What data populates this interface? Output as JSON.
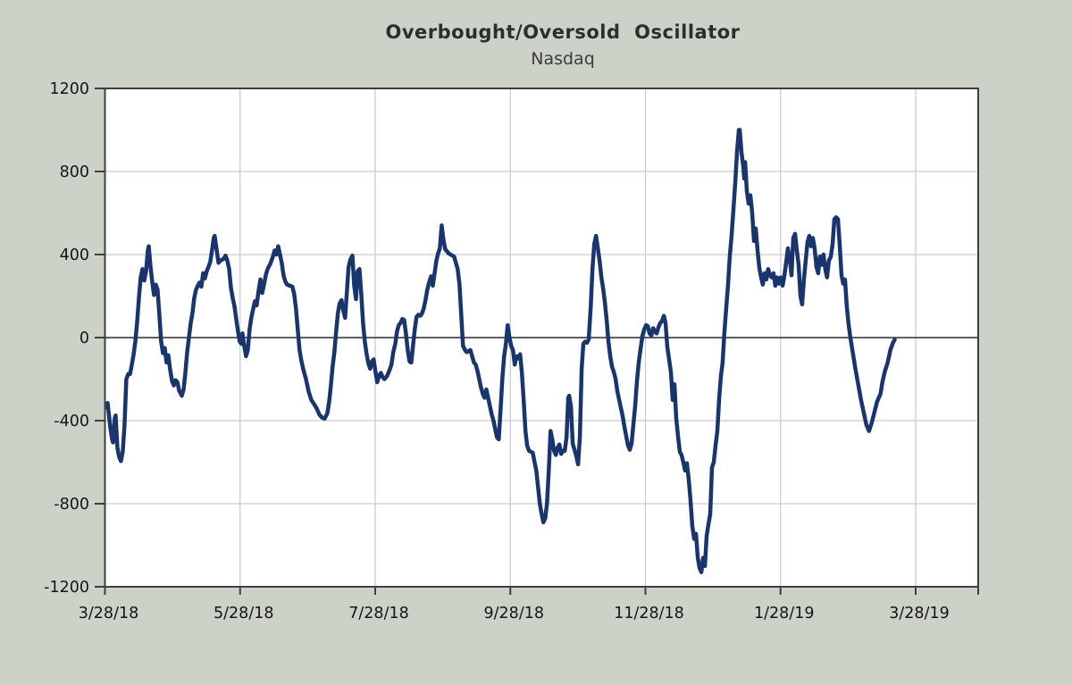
{
  "window": {
    "background_color": "#cdd2c9",
    "plot_background_color": "#ffffff",
    "grid_color": "#c9c9c9",
    "axis_color": "#3f3f3f"
  },
  "chart_data": {
    "type": "line",
    "title": "Overbought/Oversold  Oscillator",
    "subtitle": "Nasdaq",
    "series_name": "Overbought/Oversold Oscillator (Nasdaq)",
    "line_color": "#1a356d",
    "grid": true,
    "legend_position": "none",
    "ylim": [
      -1200,
      1200
    ],
    "y_ticks": [
      1200,
      800,
      400,
      0,
      -400,
      -800,
      -1200
    ],
    "y_tick_labels": [
      "1200",
      "800",
      "400",
      "0",
      "-400",
      "-800",
      "-1200"
    ],
    "x_start_date": "3/28/18",
    "x_end_date": "3/28/19",
    "x_days_span": 365,
    "x_tick_labels": [
      "3/28/18",
      "5/28/18",
      "7/28/18",
      "9/28/18",
      "11/28/18",
      "1/28/19",
      "3/28/19"
    ],
    "points": [
      [
        0.4,
        -335
      ],
      [
        1.2,
        -315
      ],
      [
        2.4,
        -435
      ],
      [
        3.2,
        -490
      ],
      [
        3.6,
        -505
      ],
      [
        4.4,
        -390
      ],
      [
        4.8,
        -375
      ],
      [
        5.6,
        -530
      ],
      [
        6.4,
        -575
      ],
      [
        7.2,
        -595
      ],
      [
        8,
        -550
      ],
      [
        8.8,
        -420
      ],
      [
        9.6,
        -200
      ],
      [
        10.5,
        -175
      ],
      [
        11.3,
        -175
      ],
      [
        12.1,
        -130
      ],
      [
        12.9,
        -80
      ],
      [
        13.7,
        -15
      ],
      [
        14.5,
        80
      ],
      [
        15.3,
        190
      ],
      [
        16.1,
        290
      ],
      [
        16.9,
        330
      ],
      [
        17.7,
        275
      ],
      [
        18.5,
        320
      ],
      [
        19.3,
        420
      ],
      [
        19.7,
        440
      ],
      [
        20.5,
        340
      ],
      [
        21.3,
        265
      ],
      [
        22.1,
        205
      ],
      [
        22.9,
        255
      ],
      [
        23.7,
        230
      ],
      [
        24.5,
        110
      ],
      [
        25.3,
        -20
      ],
      [
        26.1,
        -75
      ],
      [
        26.9,
        -50
      ],
      [
        27.7,
        -120
      ],
      [
        28.5,
        -85
      ],
      [
        29.3,
        -150
      ],
      [
        30.2,
        -210
      ],
      [
        31,
        -230
      ],
      [
        31.8,
        -205
      ],
      [
        32.6,
        -215
      ],
      [
        33.4,
        -255
      ],
      [
        34.6,
        -280
      ],
      [
        35.4,
        -250
      ],
      [
        36.2,
        -170
      ],
      [
        37,
        -70
      ],
      [
        37.8,
        0
      ],
      [
        38.6,
        70
      ],
      [
        39.4,
        120
      ],
      [
        40.2,
        190
      ],
      [
        41,
        230
      ],
      [
        41.8,
        250
      ],
      [
        42.6,
        265
      ],
      [
        43.4,
        245
      ],
      [
        44.2,
        310
      ],
      [
        45,
        285
      ],
      [
        45.8,
        320
      ],
      [
        46.6,
        340
      ],
      [
        47.4,
        365
      ],
      [
        48.2,
        420
      ],
      [
        49,
        480
      ],
      [
        49.4,
        490
      ],
      [
        50.3,
        420
      ],
      [
        51.1,
        360
      ],
      [
        51.9,
        370
      ],
      [
        52.7,
        375
      ],
      [
        53.5,
        380
      ],
      [
        54.3,
        395
      ],
      [
        55.1,
        370
      ],
      [
        55.9,
        330
      ],
      [
        56.7,
        240
      ],
      [
        57.5,
        190
      ],
      [
        58.3,
        150
      ],
      [
        59.1,
        90
      ],
      [
        59.9,
        30
      ],
      [
        60.7,
        -20
      ],
      [
        61.5,
        -30
      ],
      [
        61.9,
        20
      ],
      [
        62.7,
        -40
      ],
      [
        63.5,
        -90
      ],
      [
        64.3,
        -60
      ],
      [
        65.1,
        40
      ],
      [
        65.9,
        95
      ],
      [
        66.7,
        135
      ],
      [
        67.5,
        175
      ],
      [
        68.3,
        155
      ],
      [
        69.1,
        220
      ],
      [
        70,
        280
      ],
      [
        70.8,
        215
      ],
      [
        71.6,
        255
      ],
      [
        72.4,
        300
      ],
      [
        73.2,
        330
      ],
      [
        74.4,
        355
      ],
      [
        75.6,
        390
      ],
      [
        76.4,
        420
      ],
      [
        77.2,
        400
      ],
      [
        78,
        440
      ],
      [
        78.8,
        400
      ],
      [
        79.6,
        360
      ],
      [
        80.4,
        300
      ],
      [
        81.2,
        270
      ],
      [
        82,
        255
      ],
      [
        83.2,
        250
      ],
      [
        84.4,
        245
      ],
      [
        85.2,
        210
      ],
      [
        86,
        140
      ],
      [
        86.8,
        40
      ],
      [
        87.6,
        -60
      ],
      [
        88.4,
        -110
      ],
      [
        89.2,
        -150
      ],
      [
        90.5,
        -200
      ],
      [
        91.7,
        -260
      ],
      [
        92.9,
        -300
      ],
      [
        94.1,
        -320
      ],
      [
        95.3,
        -340
      ],
      [
        96.5,
        -370
      ],
      [
        97.7,
        -385
      ],
      [
        98.9,
        -390
      ],
      [
        100.1,
        -365
      ],
      [
        100.9,
        -310
      ],
      [
        101.7,
        -230
      ],
      [
        102.5,
        -140
      ],
      [
        103.3,
        -70
      ],
      [
        104.1,
        30
      ],
      [
        104.9,
        120
      ],
      [
        105.7,
        165
      ],
      [
        106.5,
        180
      ],
      [
        107.3,
        130
      ],
      [
        108.1,
        95
      ],
      [
        108.9,
        220
      ],
      [
        109.7,
        340
      ],
      [
        110.5,
        375
      ],
      [
        111.4,
        395
      ],
      [
        112.2,
        250
      ],
      [
        113,
        185
      ],
      [
        113.8,
        320
      ],
      [
        114.6,
        330
      ],
      [
        115.4,
        210
      ],
      [
        116.2,
        70
      ],
      [
        117,
        -20
      ],
      [
        117.8,
        -80
      ],
      [
        118.6,
        -125
      ],
      [
        119.4,
        -150
      ],
      [
        120.2,
        -115
      ],
      [
        121,
        -105
      ],
      [
        121.8,
        -165
      ],
      [
        122.6,
        -215
      ],
      [
        123.4,
        -185
      ],
      [
        124.2,
        -170
      ],
      [
        125,
        -190
      ],
      [
        125.8,
        -200
      ],
      [
        127,
        -185
      ],
      [
        128.2,
        -155
      ],
      [
        129,
        -130
      ],
      [
        129.8,
        -70
      ],
      [
        130.7,
        -30
      ],
      [
        131.5,
        30
      ],
      [
        132.3,
        60
      ],
      [
        133.1,
        70
      ],
      [
        133.9,
        90
      ],
      [
        134.7,
        85
      ],
      [
        135.5,
        20
      ],
      [
        136.3,
        -60
      ],
      [
        137.1,
        -115
      ],
      [
        137.9,
        -120
      ],
      [
        138.7,
        -40
      ],
      [
        139.5,
        40
      ],
      [
        140.3,
        100
      ],
      [
        141.1,
        110
      ],
      [
        141.9,
        105
      ],
      [
        142.7,
        115
      ],
      [
        143.5,
        140
      ],
      [
        144.3,
        180
      ],
      [
        145.1,
        230
      ],
      [
        145.9,
        265
      ],
      [
        146.8,
        295
      ],
      [
        147.6,
        250
      ],
      [
        148.4,
        310
      ],
      [
        149.2,
        370
      ],
      [
        150,
        405
      ],
      [
        150.8,
        430
      ],
      [
        151.6,
        540
      ],
      [
        152.4,
        470
      ],
      [
        153.2,
        425
      ],
      [
        154,
        415
      ],
      [
        154.8,
        405
      ],
      [
        155.6,
        400
      ],
      [
        156.4,
        395
      ],
      [
        157.2,
        390
      ],
      [
        158,
        360
      ],
      [
        158.8,
        330
      ],
      [
        159.6,
        260
      ],
      [
        160.4,
        110
      ],
      [
        161.2,
        -40
      ],
      [
        162.1,
        -60
      ],
      [
        162.9,
        -70
      ],
      [
        163.7,
        -65
      ],
      [
        164.5,
        -60
      ],
      [
        165.3,
        -90
      ],
      [
        166.1,
        -120
      ],
      [
        166.9,
        -130
      ],
      [
        167.7,
        -160
      ],
      [
        168.5,
        -200
      ],
      [
        169.3,
        -240
      ],
      [
        170.1,
        -270
      ],
      [
        170.9,
        -290
      ],
      [
        171.7,
        -250
      ],
      [
        172.5,
        -290
      ],
      [
        173.3,
        -330
      ],
      [
        174.1,
        -370
      ],
      [
        174.9,
        -400
      ],
      [
        175.7,
        -440
      ],
      [
        176.5,
        -480
      ],
      [
        177.3,
        -490
      ],
      [
        178.1,
        -350
      ],
      [
        178.9,
        -200
      ],
      [
        179.7,
        -90
      ],
      [
        180.5,
        -30
      ],
      [
        181.3,
        60
      ],
      [
        182.1,
        0
      ],
      [
        182.9,
        -40
      ],
      [
        183.7,
        -60
      ],
      [
        184.5,
        -130
      ],
      [
        185.3,
        -90
      ],
      [
        186.1,
        -100
      ],
      [
        186.9,
        -80
      ],
      [
        187.7,
        -170
      ],
      [
        188.5,
        -300
      ],
      [
        189.3,
        -450
      ],
      [
        190.1,
        -520
      ],
      [
        190.9,
        -545
      ],
      [
        191.8,
        -550
      ],
      [
        192.6,
        -555
      ],
      [
        193.4,
        -600
      ],
      [
        194.2,
        -640
      ],
      [
        195,
        -720
      ],
      [
        195.8,
        -800
      ],
      [
        196.6,
        -850
      ],
      [
        197.4,
        -890
      ],
      [
        198.2,
        -870
      ],
      [
        199,
        -800
      ],
      [
        199.8,
        -640
      ],
      [
        200.6,
        -450
      ],
      [
        201.4,
        -490
      ],
      [
        202.2,
        -545
      ],
      [
        203,
        -565
      ],
      [
        203.8,
        -530
      ],
      [
        204.6,
        -515
      ],
      [
        205.4,
        -560
      ],
      [
        206.2,
        -545
      ],
      [
        207,
        -545
      ],
      [
        207.8,
        -480
      ],
      [
        208.6,
        -290
      ],
      [
        209,
        -280
      ],
      [
        209.8,
        -330
      ],
      [
        210.6,
        -510
      ],
      [
        211.4,
        -540
      ],
      [
        212.2,
        -570
      ],
      [
        213,
        -610
      ],
      [
        213.8,
        -480
      ],
      [
        214.6,
        -150
      ],
      [
        215.4,
        -30
      ],
      [
        216.2,
        -20
      ],
      [
        217,
        -25
      ],
      [
        217.8,
        -10
      ],
      [
        218.7,
        150
      ],
      [
        219.5,
        330
      ],
      [
        220.3,
        450
      ],
      [
        221.1,
        490
      ],
      [
        221.9,
        430
      ],
      [
        222.7,
        370
      ],
      [
        223.5,
        290
      ],
      [
        224.3,
        235
      ],
      [
        225.1,
        165
      ],
      [
        225.9,
        80
      ],
      [
        226.7,
        -20
      ],
      [
        227.5,
        -90
      ],
      [
        228.3,
        -140
      ],
      [
        229.1,
        -165
      ],
      [
        229.9,
        -200
      ],
      [
        230.7,
        -260
      ],
      [
        231.5,
        -300
      ],
      [
        232.3,
        -340
      ],
      [
        233.1,
        -380
      ],
      [
        233.9,
        -430
      ],
      [
        234.7,
        -475
      ],
      [
        235.5,
        -520
      ],
      [
        236.3,
        -540
      ],
      [
        237.1,
        -510
      ],
      [
        237.9,
        -420
      ],
      [
        238.7,
        -330
      ],
      [
        239.5,
        -210
      ],
      [
        240.3,
        -120
      ],
      [
        241.2,
        -50
      ],
      [
        242,
        10
      ],
      [
        242.8,
        40
      ],
      [
        243.6,
        60
      ],
      [
        244.4,
        55
      ],
      [
        245.2,
        20
      ],
      [
        246,
        10
      ],
      [
        246.8,
        45
      ],
      [
        247.6,
        30
      ],
      [
        248.4,
        20
      ],
      [
        249.2,
        50
      ],
      [
        250,
        70
      ],
      [
        250.8,
        80
      ],
      [
        251.6,
        105
      ],
      [
        252.4,
        70
      ],
      [
        253.2,
        -45
      ],
      [
        254,
        -105
      ],
      [
        254.8,
        -165
      ],
      [
        255.6,
        -300
      ],
      [
        256.4,
        -225
      ],
      [
        257.2,
        -390
      ],
      [
        258,
        -475
      ],
      [
        258.8,
        -550
      ],
      [
        259.6,
        -565
      ],
      [
        260.4,
        -600
      ],
      [
        261.2,
        -640
      ],
      [
        262,
        -605
      ],
      [
        262.8,
        -680
      ],
      [
        263.6,
        -780
      ],
      [
        264.4,
        -905
      ],
      [
        265.3,
        -970
      ],
      [
        266.1,
        -945
      ],
      [
        266.9,
        -1060
      ],
      [
        267.7,
        -1110
      ],
      [
        268.5,
        -1130
      ],
      [
        269.3,
        -1060
      ],
      [
        270.1,
        -1100
      ],
      [
        270.9,
        -955
      ],
      [
        271.7,
        -900
      ],
      [
        272.5,
        -850
      ],
      [
        273.3,
        -625
      ],
      [
        274.1,
        -600
      ],
      [
        274.9,
        -520
      ],
      [
        275.7,
        -450
      ],
      [
        276.5,
        -295
      ],
      [
        277.3,
        -185
      ],
      [
        278.1,
        -120
      ],
      [
        278.9,
        25
      ],
      [
        279.7,
        140
      ],
      [
        280.5,
        250
      ],
      [
        281.3,
        390
      ],
      [
        282.1,
        490
      ],
      [
        282.9,
        610
      ],
      [
        283.8,
        750
      ],
      [
        284.6,
        900
      ],
      [
        285.4,
        1000
      ],
      [
        285.8,
        1000
      ],
      [
        286.6,
        890
      ],
      [
        287.4,
        820
      ],
      [
        287.8,
        765
      ],
      [
        288.2,
        845
      ],
      [
        289,
        705
      ],
      [
        289.8,
        645
      ],
      [
        290.6,
        685
      ],
      [
        291.4,
        600
      ],
      [
        292.2,
        465
      ],
      [
        293,
        525
      ],
      [
        293.8,
        420
      ],
      [
        294.6,
        335
      ],
      [
        295.4,
        290
      ],
      [
        296.2,
        255
      ],
      [
        297,
        310
      ],
      [
        297.8,
        280
      ],
      [
        298.6,
        330
      ],
      [
        299.4,
        300
      ],
      [
        300.2,
        290
      ],
      [
        301,
        310
      ],
      [
        301.8,
        250
      ],
      [
        302.6,
        290
      ],
      [
        303.4,
        260
      ],
      [
        304.3,
        290
      ],
      [
        305.1,
        250
      ],
      [
        305.9,
        300
      ],
      [
        306.7,
        360
      ],
      [
        307.5,
        430
      ],
      [
        308.3,
        380
      ],
      [
        309.1,
        300
      ],
      [
        309.9,
        480
      ],
      [
        310.7,
        500
      ],
      [
        311.5,
        420
      ],
      [
        312.3,
        350
      ],
      [
        313.1,
        200
      ],
      [
        313.9,
        160
      ],
      [
        314.7,
        280
      ],
      [
        315.5,
        370
      ],
      [
        316.3,
        460
      ],
      [
        317.1,
        490
      ],
      [
        317.9,
        440
      ],
      [
        318.7,
        480
      ],
      [
        319.5,
        430
      ],
      [
        320.3,
        340
      ],
      [
        321.1,
        310
      ],
      [
        321.9,
        390
      ],
      [
        322.7,
        350
      ],
      [
        323.5,
        400
      ],
      [
        324.3,
        330
      ],
      [
        325.1,
        290
      ],
      [
        325.9,
        370
      ],
      [
        326.8,
        390
      ],
      [
        327.6,
        450
      ],
      [
        328.4,
        570
      ],
      [
        329.2,
        580
      ],
      [
        330,
        570
      ],
      [
        330.8,
        445
      ],
      [
        331.6,
        300
      ],
      [
        332.4,
        260
      ],
      [
        333.2,
        280
      ],
      [
        334,
        150
      ],
      [
        334.8,
        65
      ],
      [
        335.6,
        0
      ],
      [
        336.8,
        -80
      ],
      [
        338,
        -160
      ],
      [
        339.2,
        -230
      ],
      [
        340.4,
        -300
      ],
      [
        341.6,
        -360
      ],
      [
        342.8,
        -420
      ],
      [
        344,
        -450
      ],
      [
        345.2,
        -410
      ],
      [
        346.4,
        -360
      ],
      [
        347.6,
        -310
      ],
      [
        348.4,
        -290
      ],
      [
        349.2,
        -270
      ],
      [
        350,
        -215
      ],
      [
        351.2,
        -160
      ],
      [
        352.4,
        -120
      ],
      [
        353.6,
        -60
      ],
      [
        354.8,
        -25
      ],
      [
        355.6,
        -10
      ]
    ]
  }
}
